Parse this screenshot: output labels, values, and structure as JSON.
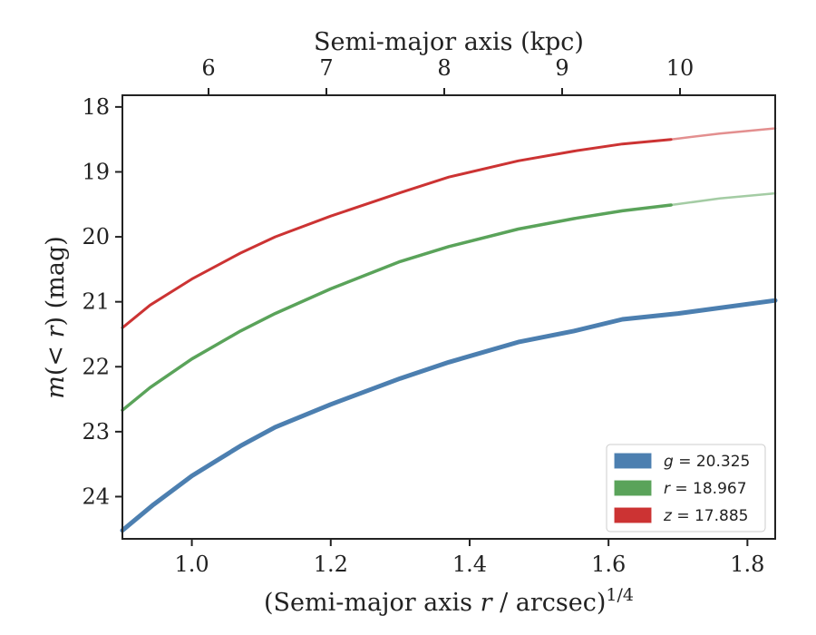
{
  "chart_data": {
    "type": "line",
    "title": "",
    "xlabel": "(Semi-major axis r / arcsec)^1/4",
    "ylabel": "m(< r) (mag)",
    "top_xlabel": "Semi-major axis (kpc)",
    "xlim": [
      0.9,
      1.84
    ],
    "ylim": [
      24.65,
      17.82
    ],
    "y_inverted": true,
    "x_ticks": [
      "1.0",
      "1.2",
      "1.4",
      "1.6",
      "1.8"
    ],
    "x_tick_values": [
      1.0,
      1.2,
      1.4,
      1.6,
      1.8
    ],
    "y_ticks": [
      "18",
      "19",
      "20",
      "21",
      "22",
      "23",
      "24"
    ],
    "y_tick_values": [
      18,
      19,
      20,
      21,
      22,
      23,
      24
    ],
    "top_ticks": [
      "6",
      "7",
      "8",
      "9",
      "10"
    ],
    "top_tick_values": [
      6,
      7,
      8,
      9,
      10
    ],
    "grid": false,
    "legend_position": "bottom-right",
    "series": [
      {
        "name": "g = 20.325",
        "color": "#4c7fb0",
        "x": [
          0.9,
          0.945,
          1.0,
          1.07,
          1.12,
          1.2,
          1.3,
          1.37,
          1.47,
          1.55,
          1.62,
          1.7,
          1.84
        ],
        "y": [
          24.52,
          24.12,
          23.68,
          23.22,
          22.93,
          22.58,
          22.18,
          21.93,
          21.62,
          21.45,
          21.27,
          21.18,
          20.98
        ],
        "extension_x": [],
        "extension_y": []
      },
      {
        "name": "r = 18.967",
        "color": "#5aa35a",
        "x": [
          0.9,
          0.94,
          1.0,
          1.07,
          1.12,
          1.2,
          1.3,
          1.37,
          1.47,
          1.55,
          1.62,
          1.69
        ],
        "y": [
          22.67,
          22.32,
          21.88,
          21.45,
          21.18,
          20.8,
          20.38,
          20.15,
          19.88,
          19.72,
          19.6,
          19.51
        ],
        "extension_x": [
          1.69,
          1.76,
          1.84
        ],
        "extension_y": [
          19.51,
          19.41,
          19.33
        ]
      },
      {
        "name": "z = 17.885",
        "color": "#cc3333",
        "x": [
          0.9,
          0.94,
          1.0,
          1.07,
          1.12,
          1.2,
          1.3,
          1.37,
          1.47,
          1.55,
          1.62,
          1.69
        ],
        "y": [
          21.4,
          21.05,
          20.65,
          20.25,
          20.0,
          19.68,
          19.32,
          19.08,
          18.83,
          18.68,
          18.57,
          18.5
        ],
        "extension_x": [
          1.69,
          1.76,
          1.84
        ],
        "extension_y": [
          18.5,
          18.41,
          18.33
        ]
      }
    ]
  }
}
